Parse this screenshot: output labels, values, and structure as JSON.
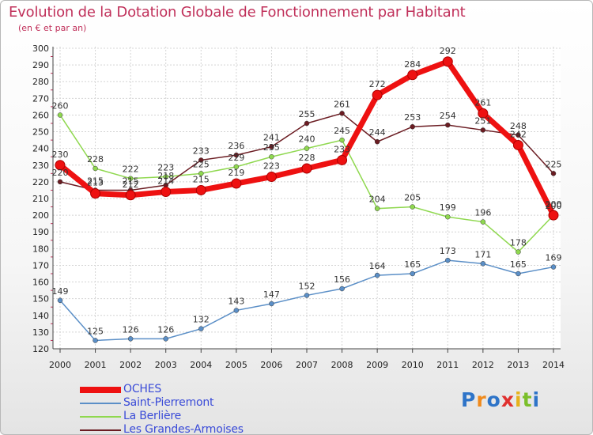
{
  "title": "Evolution de la Dotation Globale de Fonctionnement par Habitant",
  "subtitle": "(en € et par an)",
  "logo": "Proxiti",
  "colors": {
    "title": "#c0305a",
    "legend_text": "#3a4bd8"
  },
  "chart_data": {
    "type": "line",
    "title": "Evolution de la Dotation Globale de Fonctionnement par Habitant",
    "subtitle": "(en € et par an)",
    "x": [
      "2000",
      "2001",
      "2002",
      "2003",
      "2004",
      "2005",
      "2006",
      "2007",
      "2008",
      "2009",
      "2010",
      "2011",
      "2012",
      "2013",
      "2014"
    ],
    "ylim": [
      120,
      300
    ],
    "yticks": [
      120,
      130,
      140,
      150,
      160,
      170,
      180,
      190,
      200,
      210,
      220,
      230,
      240,
      250,
      260,
      270,
      280,
      290,
      300
    ],
    "grid": true,
    "legend_position": "bottom-left",
    "series": [
      {
        "name": "OCHES",
        "color": "#ee1111",
        "emphasis": true,
        "values": [
          230,
          213,
          212,
          214,
          215,
          219,
          223,
          228,
          233,
          272,
          284,
          292,
          261,
          242,
          200
        ]
      },
      {
        "name": "Saint-Pierremont",
        "color": "#5b8fc7",
        "emphasis": false,
        "values": [
          149,
          125,
          126,
          126,
          132,
          143,
          147,
          152,
          156,
          164,
          165,
          173,
          171,
          165,
          169
        ]
      },
      {
        "name": "La Berlière",
        "color": "#8fd84f",
        "emphasis": false,
        "values": [
          260,
          228,
          222,
          223,
          225,
          229,
          235,
          240,
          245,
          204,
          205,
          199,
          196,
          178,
          200
        ]
      },
      {
        "name": "Les Grandes-Armoises",
        "color": "#6b1c22",
        "emphasis": false,
        "values": [
          220,
          215,
          215,
          218,
          233,
          236,
          241,
          255,
          261,
          244,
          253,
          254,
          251,
          248,
          225
        ]
      }
    ]
  }
}
